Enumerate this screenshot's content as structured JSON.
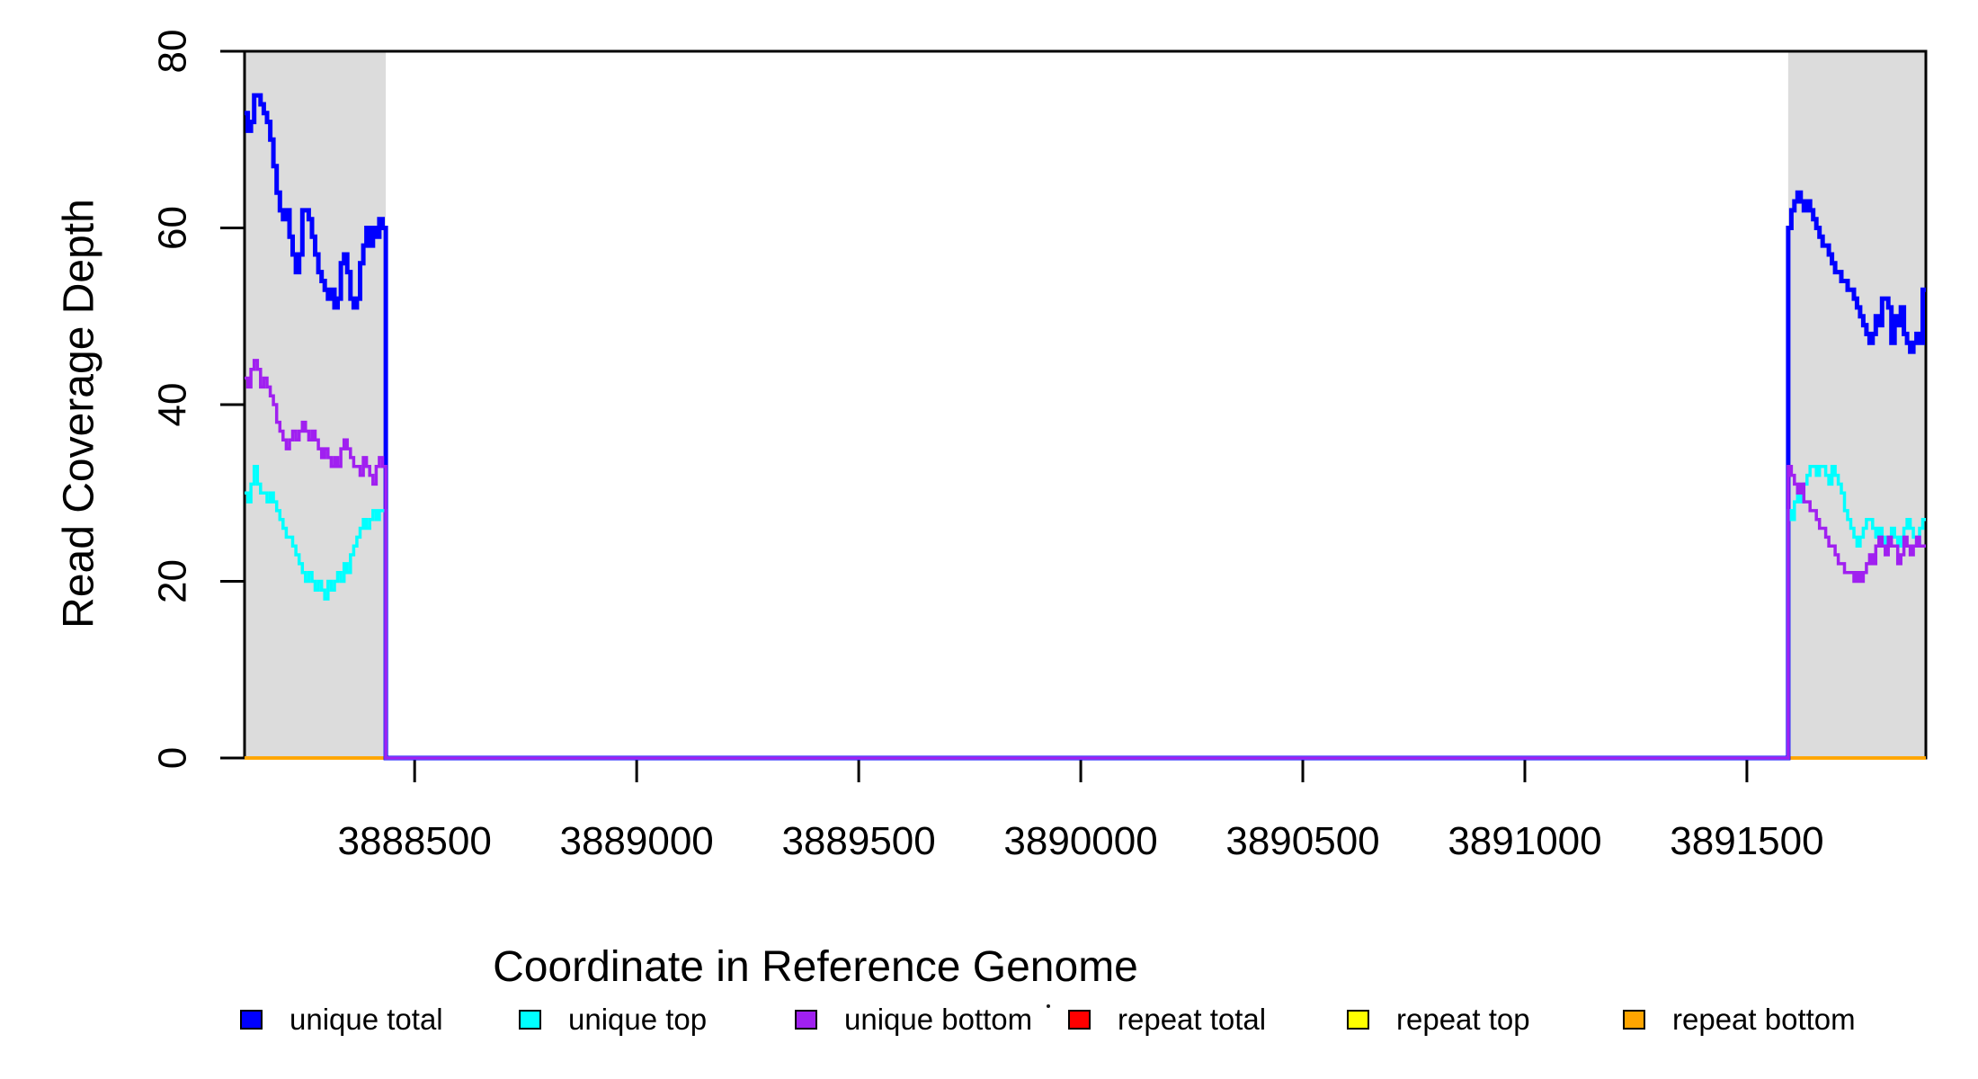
{
  "chart_data": {
    "type": "line",
    "subtype": "step",
    "title": "",
    "xlabel": "Coordinate in Reference Genome",
    "ylabel": "Read Coverage Depth",
    "xlim": [
      3888117,
      3891903
    ],
    "ylim": [
      0,
      80
    ],
    "xticks": [
      "3888500",
      "3889000",
      "3889500",
      "3890000",
      "3890500",
      "3891000",
      "3891500"
    ],
    "xtick_values": [
      3888500,
      3889000,
      3889500,
      3890000,
      3890500,
      3891000,
      3891500
    ],
    "yticks": [
      "0",
      "20",
      "40",
      "60",
      "80"
    ],
    "ytick_values": [
      0,
      20,
      40,
      60,
      80
    ],
    "grid": false,
    "box_color": "#000000",
    "shade_color": "#DCDCDC",
    "shaded_regions": [
      {
        "start": 3888117,
        "end": 3888435
      },
      {
        "start": 3891593,
        "end": 3891903
      }
    ],
    "series": [
      {
        "name": "repeat total",
        "color": "#FF0000",
        "stroke_width": 3.5,
        "segments": [
          {
            "start": 3888117,
            "end": 3891903,
            "values": [
              0
            ]
          }
        ]
      },
      {
        "name": "repeat top",
        "color": "#FFFF00",
        "stroke_width": 3.5,
        "segments": [
          {
            "start": 3888117,
            "end": 3891903,
            "values": [
              0
            ]
          }
        ]
      },
      {
        "name": "repeat bottom",
        "color": "#FFA500",
        "stroke_width": 3.5,
        "segments": [
          {
            "start": 3888117,
            "end": 3891903,
            "values": [
              0
            ]
          }
        ]
      },
      {
        "name": "unique total",
        "color": "#0000FF",
        "stroke_width": 5,
        "segments": [
          {
            "start": 3888117,
            "end": 3888435,
            "values": [
              73,
              71,
              72,
              75,
              75,
              74,
              73,
              72,
              70,
              67,
              64,
              62,
              61,
              62,
              59,
              57,
              55,
              57,
              62,
              62,
              61,
              59,
              57,
              55,
              54,
              53,
              52,
              53,
              51,
              52,
              56,
              57,
              55,
              52,
              51,
              52,
              56,
              58,
              60,
              58,
              60,
              59,
              61,
              60
            ]
          },
          {
            "start": 3888435,
            "end": 3891593,
            "values": [
              0
            ]
          },
          {
            "start": 3891593,
            "end": 3891903,
            "values": [
              60,
              62,
              63,
              64,
              63,
              62,
              63,
              62,
              61,
              60,
              59,
              58,
              58,
              57,
              56,
              55,
              55,
              54,
              54,
              53,
              53,
              52,
              51,
              50,
              49,
              48,
              47,
              48,
              50,
              49,
              52,
              52,
              51,
              47,
              50,
              49,
              51,
              48,
              47,
              46,
              47,
              48,
              47,
              53
            ]
          }
        ]
      },
      {
        "name": "unique top",
        "color": "#00FFFF",
        "stroke_width": 3.5,
        "segments": [
          {
            "start": 3888117,
            "end": 3888435,
            "values": [
              30,
              29,
              31,
              33,
              31,
              30,
              30,
              29,
              30,
              29,
              28,
              27,
              26,
              25,
              25,
              24,
              23,
              22,
              21,
              20,
              21,
              20,
              19,
              20,
              19,
              18,
              20,
              19,
              20,
              21,
              20,
              22,
              21,
              23,
              24,
              25,
              26,
              27,
              26,
              27,
              28,
              27,
              28,
              28
            ]
          },
          {
            "start": 3888435,
            "end": 3891593,
            "values": [
              0
            ]
          },
          {
            "start": 3891593,
            "end": 3891903,
            "values": [
              28,
              27,
              29,
              30,
              29,
              31,
              32,
              33,
              33,
              32,
              33,
              33,
              32,
              31,
              33,
              32,
              31,
              30,
              28,
              27,
              26,
              25,
              24,
              25,
              26,
              27,
              27,
              26,
              25,
              26,
              25,
              24,
              25,
              26,
              25,
              24,
              25,
              26,
              27,
              26,
              25,
              24,
              26,
              27
            ]
          }
        ]
      },
      {
        "name": "unique bottom",
        "color": "#A020F0",
        "stroke_width": 3.5,
        "segments": [
          {
            "start": 3888117,
            "end": 3888435,
            "values": [
              43,
              42,
              44,
              45,
              44,
              42,
              43,
              42,
              41,
              40,
              38,
              37,
              36,
              35,
              36,
              37,
              36,
              37,
              38,
              37,
              36,
              37,
              36,
              35,
              34,
              35,
              34,
              33,
              34,
              33,
              35,
              36,
              35,
              34,
              33,
              33,
              32,
              34,
              33,
              32,
              31,
              33,
              34,
              33
            ]
          },
          {
            "start": 3888435,
            "end": 3891593,
            "values": [
              0
            ]
          },
          {
            "start": 3891593,
            "end": 3891903,
            "values": [
              33,
              32,
              31,
              30,
              31,
              29,
              29,
              28,
              28,
              27,
              26,
              26,
              25,
              24,
              24,
              23,
              22,
              22,
              21,
              21,
              21,
              20,
              21,
              20,
              21,
              22,
              23,
              22,
              24,
              25,
              24,
              23,
              25,
              24,
              24,
              22,
              23,
              25,
              24,
              23,
              24,
              25,
              24,
              24
            ]
          }
        ]
      }
    ],
    "legend": {
      "position": "bottom",
      "entries": [
        {
          "label": "unique total",
          "color": "#0000FF"
        },
        {
          "label": "unique top",
          "color": "#00FFFF"
        },
        {
          "label": "unique bottom",
          "color": "#A020F0"
        },
        {
          "label": "repeat total",
          "color": "#FF0000"
        },
        {
          "label": "repeat top",
          "color": "#FFFF00"
        },
        {
          "label": "repeat bottom",
          "color": "#FFA500"
        }
      ]
    }
  }
}
